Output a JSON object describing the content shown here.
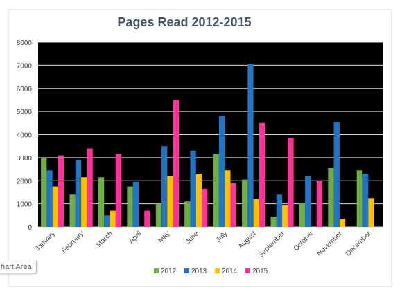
{
  "chart_data": {
    "type": "bar",
    "title": "Pages Read 2012-2015",
    "xlabel": "",
    "ylabel": "",
    "ylim": [
      0,
      8000
    ],
    "yticks": [
      0,
      1000,
      2000,
      3000,
      4000,
      5000,
      6000,
      7000,
      8000
    ],
    "grid": true,
    "legend_position": "bottom",
    "plot_background": "#000000",
    "categories": [
      "January",
      "February",
      "March",
      "April",
      "May",
      "June",
      "July",
      "August",
      "September",
      "October",
      "November",
      "December"
    ],
    "series": [
      {
        "name": "2012",
        "color": "#70ad47",
        "values": [
          3000,
          1400,
          2150,
          1750,
          1000,
          1100,
          3150,
          2050,
          450,
          1050,
          2550,
          2450
        ]
      },
      {
        "name": "2013",
        "color": "#1f77c4",
        "values": [
          2450,
          2900,
          500,
          1950,
          3500,
          3300,
          4800,
          7050,
          1400,
          2200,
          4550,
          2300
        ]
      },
      {
        "name": "2014",
        "color": "#ffc000",
        "values": [
          1750,
          2150,
          700,
          0,
          2200,
          2300,
          2450,
          1200,
          950,
          0,
          350,
          1250
        ]
      },
      {
        "name": "2015",
        "color": "#ff3399",
        "values": [
          3100,
          3400,
          3150,
          700,
          5500,
          1650,
          1900,
          4500,
          3850,
          2000,
          0,
          0
        ]
      }
    ]
  },
  "tooltip": {
    "label": "hart Area"
  }
}
